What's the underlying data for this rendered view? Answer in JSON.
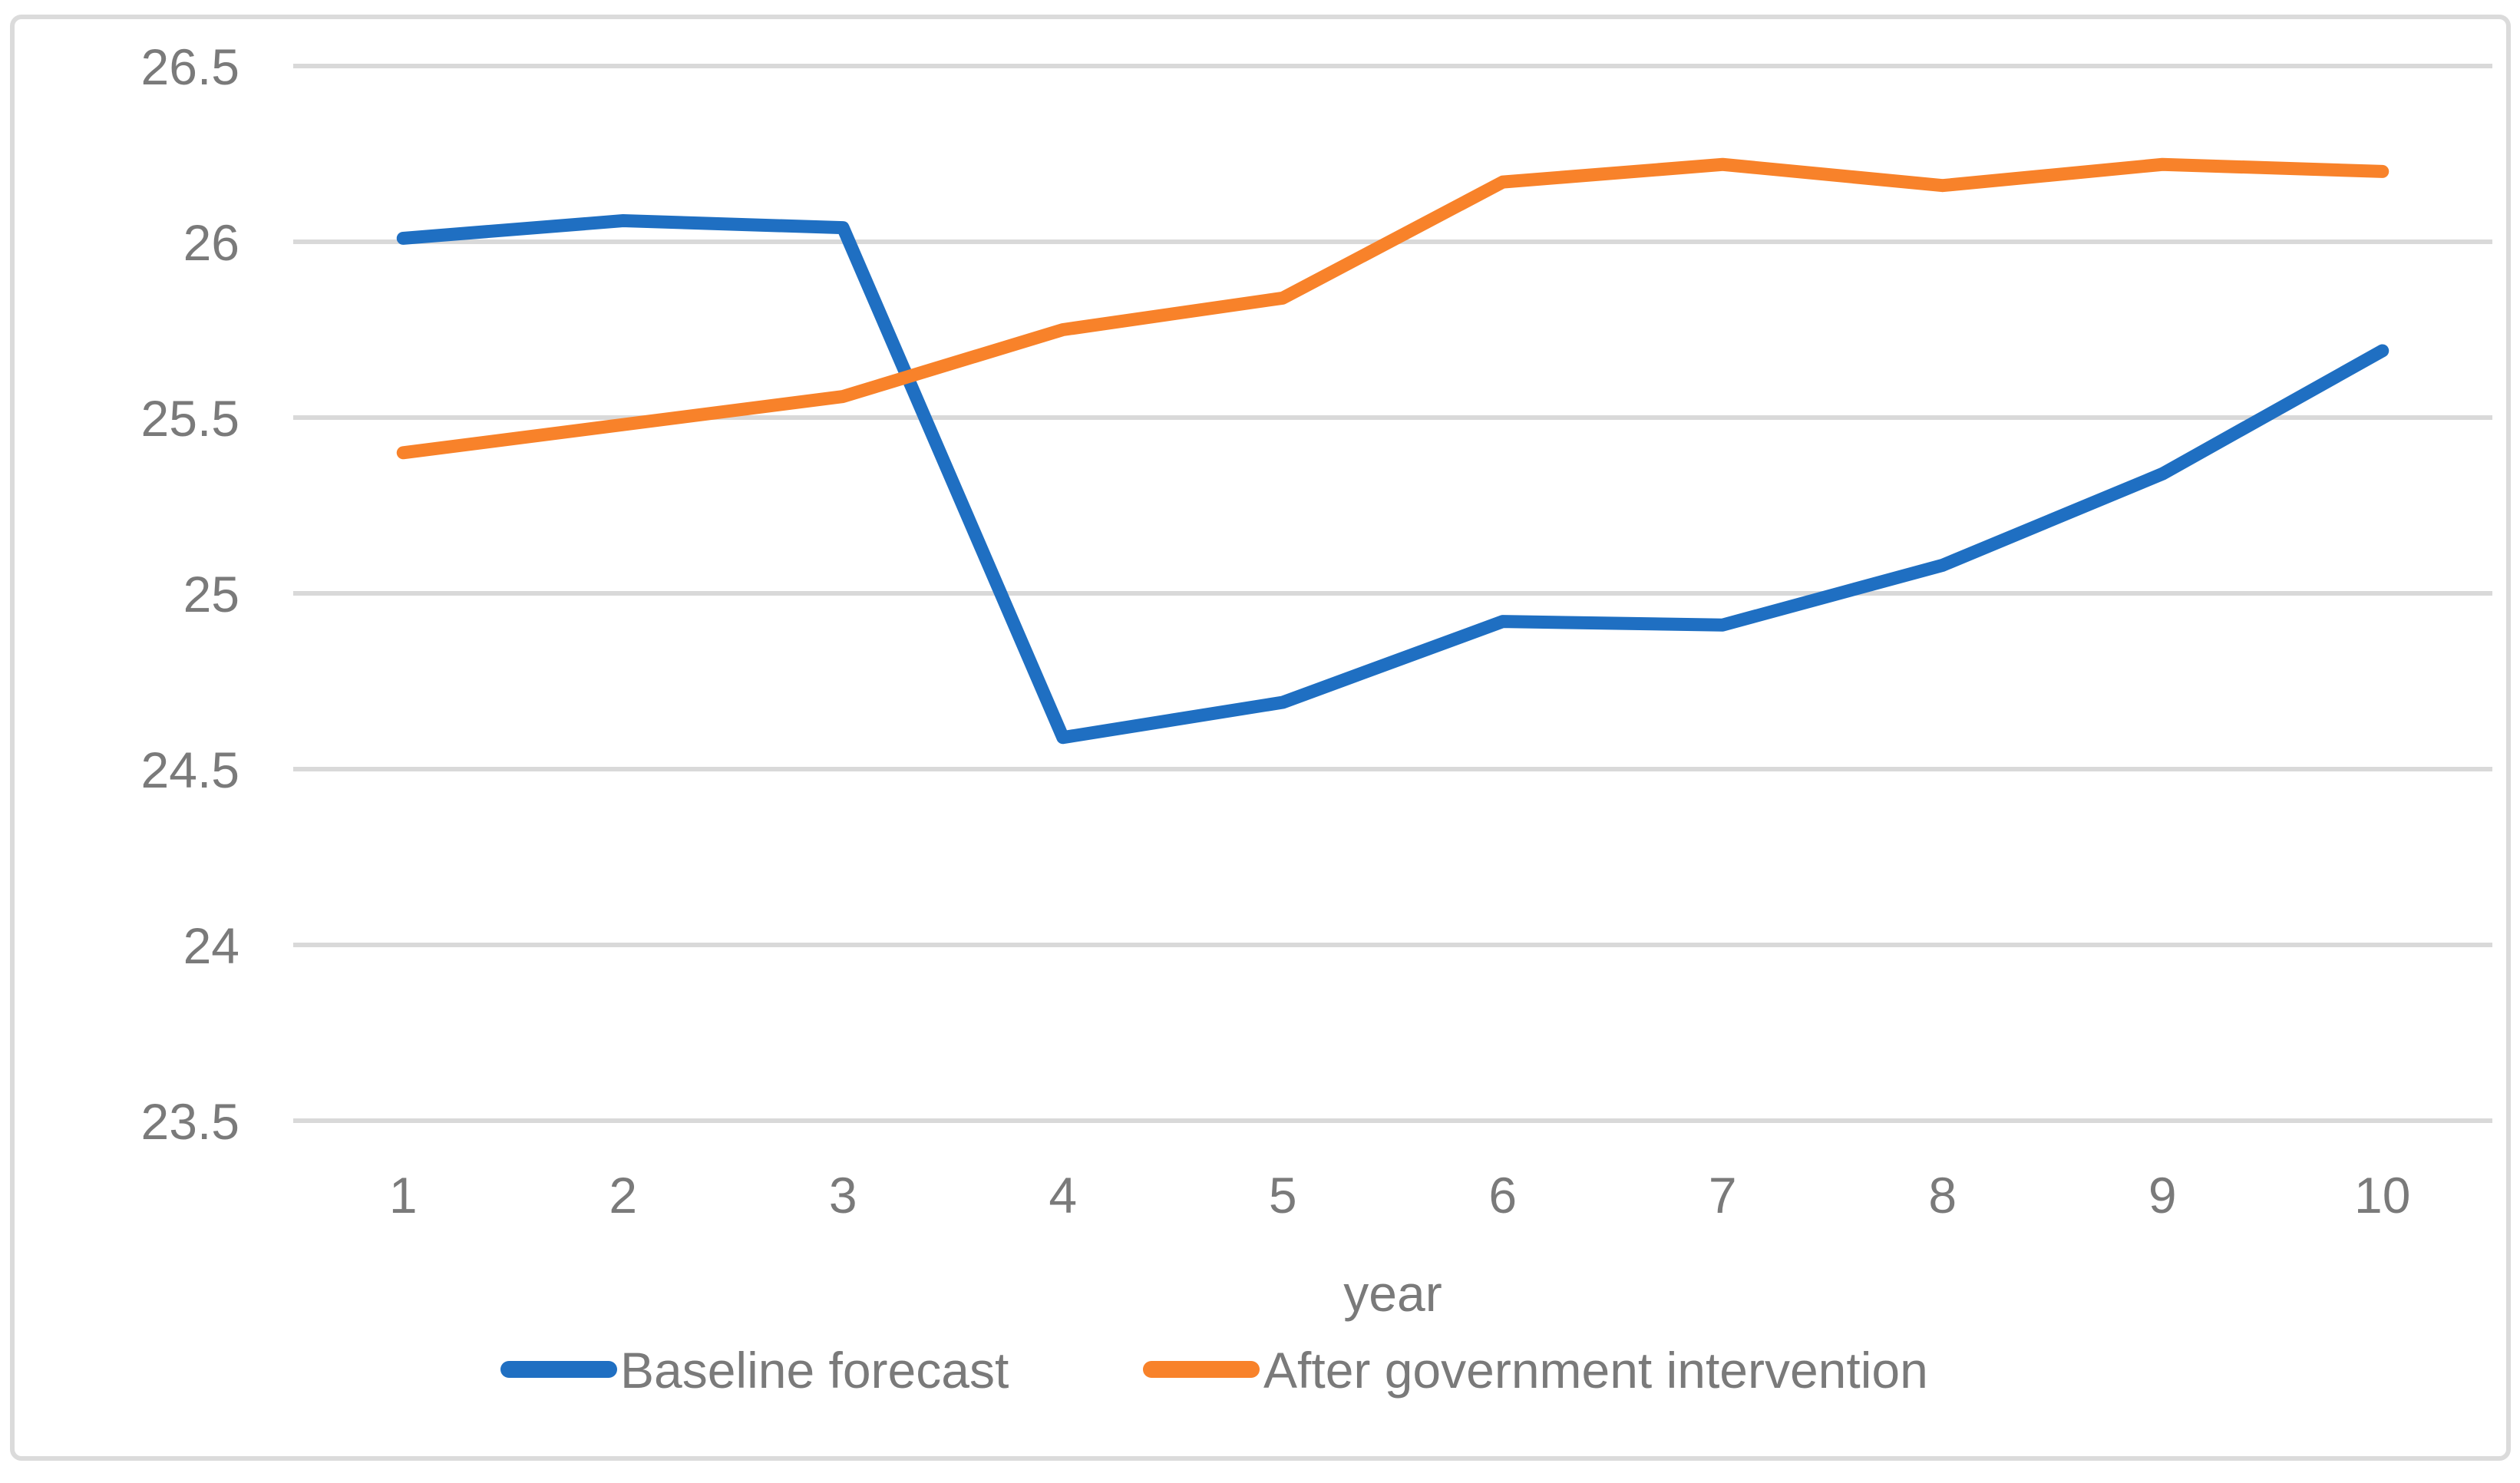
{
  "figure": {
    "background": "#FFFFFF",
    "frame_color": "#DBDBDB",
    "gridline_color": "#D9D9D9",
    "text_color": "#7A7A7A"
  },
  "chart_data": {
    "type": "line",
    "title": "",
    "xlabel": "year",
    "ylabel": "",
    "x": [
      1,
      2,
      3,
      4,
      5,
      6,
      7,
      8,
      9,
      10
    ],
    "ylim": [
      23.5,
      26.5
    ],
    "ytick_values": [
      26.5,
      26,
      25.5,
      25,
      24.5,
      24,
      23.5
    ],
    "ytick_labels": [
      "26.5",
      "26",
      "25.5",
      "25",
      "24.5",
      "24",
      "23.5"
    ],
    "grid": true,
    "legend_position": "bottom",
    "series": [
      {
        "name": "Baseline forecast",
        "color": "#1F6FC2",
        "values": [
          26.01,
          26.06,
          26.04,
          24.59,
          24.69,
          24.92,
          24.91,
          25.08,
          25.34,
          25.69
        ]
      },
      {
        "name": "After government intervention",
        "color": "#F8822A",
        "values": [
          25.4,
          25.48,
          25.56,
          25.75,
          25.84,
          26.17,
          26.22,
          26.16,
          26.22,
          26.2
        ]
      }
    ]
  }
}
